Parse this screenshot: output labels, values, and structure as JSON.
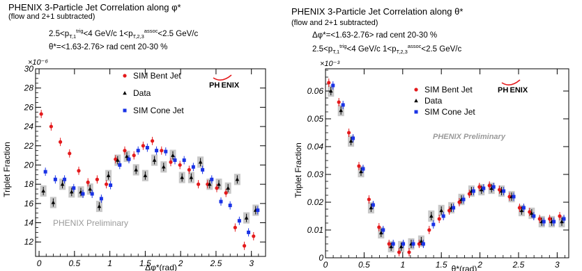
{
  "chart_data": [
    {
      "type": "scatter",
      "title": "PHENIX 3-Particle Jet Correlation along φ*",
      "subtitle": "(flow and 2+1 subtracted)",
      "header_lines": [
        {
          "pre": "2.5<p",
          "sub1": "T,1",
          "sup1": "trig",
          "mid": "<4 GeV/c 1<p",
          "sub2": "T,2,3",
          "sup2": "assoc",
          "post": "<2.5 GeV/c"
        },
        {
          "text": "θ*=<1.63-2.76> rad      cent 20-30 %"
        }
      ],
      "xlabel": "Δφ*(rad)",
      "ylabel": "Triplet Fraction",
      "y_exponent": "×10⁻⁶",
      "xlim": [
        -0.05,
        3.2
      ],
      "ylim": [
        10.5,
        30
      ],
      "xticks": [
        "0",
        "0.5",
        "1",
        "1.5",
        "2",
        "2.5",
        "3"
      ],
      "xtick_values": [
        0,
        0.5,
        1,
        1.5,
        2,
        2.5,
        3
      ],
      "yticks": [
        "12",
        "14",
        "16",
        "18",
        "20",
        "22",
        "24",
        "26",
        "28",
        "30"
      ],
      "ytick_values": [
        12,
        14,
        16,
        18,
        20,
        22,
        24,
        26,
        28,
        30
      ],
      "watermark": "PHENIX Preliminary",
      "logo": "PH ENIX",
      "legend": [
        {
          "name": "SIM Bent Jet",
          "color": "#e41a1c",
          "marker": "circle"
        },
        {
          "name": "Data",
          "color": "#000000",
          "marker": "triangle"
        },
        {
          "name": "SIM Cone Jet",
          "color": "#1a33e6",
          "marker": "square"
        }
      ],
      "series": [
        {
          "name": "SIM Bent Jet",
          "x": [
            0.06,
            0.2,
            0.33,
            0.46,
            0.59,
            0.72,
            0.85,
            0.98,
            1.11,
            1.24,
            1.37,
            1.5,
            1.63,
            1.76,
            1.89,
            2.02,
            2.15,
            2.28,
            2.41,
            2.54,
            2.67,
            2.8,
            2.93,
            3.06
          ],
          "y": [
            25.3,
            24.0,
            22.4,
            21.2,
            19.4,
            18.2,
            18.5,
            18.0,
            20.6,
            21.5,
            21.0,
            22.0,
            22.5,
            21.5,
            20.3,
            20.0,
            19.5,
            18.0,
            18.0,
            17.6,
            17.1,
            13.5,
            11.6,
            12.6
          ]
        },
        {
          "name": "Data",
          "x": [
            0.06,
            0.2,
            0.33,
            0.46,
            0.59,
            0.72,
            0.85,
            0.98,
            1.11,
            1.24,
            1.37,
            1.5,
            1.63,
            1.76,
            1.89,
            2.02,
            2.15,
            2.28,
            2.41,
            2.54,
            2.67,
            2.8,
            2.93,
            3.06
          ],
          "y": [
            17.3,
            16.1,
            18.0,
            17.2,
            17.2,
            17.5,
            15.7,
            18.9,
            20.5,
            20.9,
            19.5,
            18.9,
            20.5,
            19.8,
            21.0,
            18.7,
            18.7,
            20.3,
            18.0,
            18.0,
            17.6,
            18.5,
            14.5,
            15.3
          ]
        },
        {
          "name": "SIM Cone Jet",
          "x": [
            0.06,
            0.2,
            0.33,
            0.46,
            0.59,
            0.72,
            0.85,
            0.98,
            1.11,
            1.24,
            1.37,
            1.5,
            1.63,
            1.76,
            1.89,
            2.02,
            2.15,
            2.28,
            2.41,
            2.54,
            2.67,
            2.8,
            2.93,
            3.06
          ],
          "y": [
            19.3,
            18.5,
            18.5,
            17.6,
            17.0,
            17.0,
            16.5,
            17.9,
            20.0,
            20.6,
            21.5,
            21.8,
            21.5,
            21.4,
            20.5,
            20.5,
            19.8,
            19.5,
            18.5,
            16.2,
            15.8,
            14.2,
            13.0,
            15.3
          ]
        }
      ]
    },
    {
      "type": "scatter",
      "title": "PHENIX 3-Particle Jet Correlation along θ*",
      "subtitle": "(flow and 2+1 subtracted)",
      "header_lines": [
        {
          "text": "Δφ*=<1.63-2.76> rad      cent 20-30 %"
        },
        {
          "pre": "2.5<p",
          "sub1": "T,1",
          "sup1": "trig",
          "mid": "<4 GeV/c 1<p",
          "sub2": "T,2,3",
          "sup2": "assoc",
          "post": "<2.5 GeV/c"
        }
      ],
      "xlabel": "θ*(rad)",
      "ylabel": "Triplet Fraction",
      "y_exponent": "×10⁻³",
      "xlim": [
        0,
        3.15
      ],
      "ylim": [
        0,
        0.068
      ],
      "xticks": [
        "0",
        "0.5",
        "1",
        "1.5",
        "2",
        "2.5",
        "3"
      ],
      "xtick_values": [
        0,
        0.5,
        1,
        1.5,
        2,
        2.5,
        3
      ],
      "yticks": [
        "0",
        "0.01",
        "0.02",
        "0.03",
        "0.04",
        "0.05",
        "0.06"
      ],
      "ytick_values": [
        0,
        0.01,
        0.02,
        0.03,
        0.04,
        0.05,
        0.06
      ],
      "watermark": "PHENIX Preliminary",
      "logo": "PH ENIX",
      "legend": [
        {
          "name": "SIM Bent Jet",
          "color": "#e41a1c",
          "marker": "circle"
        },
        {
          "name": "Data",
          "color": "#000000",
          "marker": "triangle"
        },
        {
          "name": "SIM Cone Jet",
          "color": "#1a33e6",
          "marker": "square"
        }
      ],
      "series": [
        {
          "name": "SIM Bent Jet",
          "x": [
            0.07,
            0.2,
            0.33,
            0.46,
            0.59,
            0.72,
            0.85,
            0.98,
            1.11,
            1.24,
            1.37,
            1.5,
            1.63,
            1.76,
            1.89,
            2.02,
            2.15,
            2.28,
            2.41,
            2.54,
            2.67,
            2.8,
            2.93,
            3.06
          ],
          "y": [
            0.063,
            0.056,
            0.045,
            0.033,
            0.021,
            0.011,
            0.005,
            0.002,
            0.002,
            0.005,
            0.01,
            0.014,
            0.017,
            0.02,
            0.023,
            0.0255,
            0.026,
            0.0245,
            0.022,
            0.018,
            0.0165,
            0.014,
            0.014,
            0.015
          ]
        },
        {
          "name": "Data",
          "x": [
            0.07,
            0.2,
            0.33,
            0.46,
            0.59,
            0.72,
            0.85,
            0.98,
            1.11,
            1.24,
            1.37,
            1.5,
            1.63,
            1.76,
            1.89,
            2.02,
            2.15,
            2.28,
            2.41,
            2.54,
            2.67,
            2.8,
            2.93,
            3.06
          ],
          "y": [
            0.06,
            0.053,
            0.042,
            0.031,
            0.018,
            0.009,
            0.004,
            0.004,
            0.005,
            0.006,
            0.015,
            0.017,
            0.018,
            0.021,
            0.024,
            0.0245,
            0.025,
            0.024,
            0.022,
            0.017,
            0.016,
            0.013,
            0.013,
            0.013
          ]
        },
        {
          "name": "SIM Cone Jet",
          "x": [
            0.07,
            0.2,
            0.33,
            0.46,
            0.59,
            0.72,
            0.85,
            0.98,
            1.11,
            1.24,
            1.37,
            1.5,
            1.63,
            1.76,
            1.89,
            2.02,
            2.15,
            2.28,
            2.41,
            2.54,
            2.67,
            2.8,
            2.93,
            3.06
          ],
          "y": [
            0.062,
            0.055,
            0.043,
            0.032,
            0.019,
            0.01,
            0.005,
            0.005,
            0.005,
            0.005,
            0.012,
            0.015,
            0.018,
            0.021,
            0.024,
            0.025,
            0.0255,
            0.024,
            0.022,
            0.018,
            0.015,
            0.013,
            0.013,
            0.014
          ]
        }
      ]
    }
  ]
}
